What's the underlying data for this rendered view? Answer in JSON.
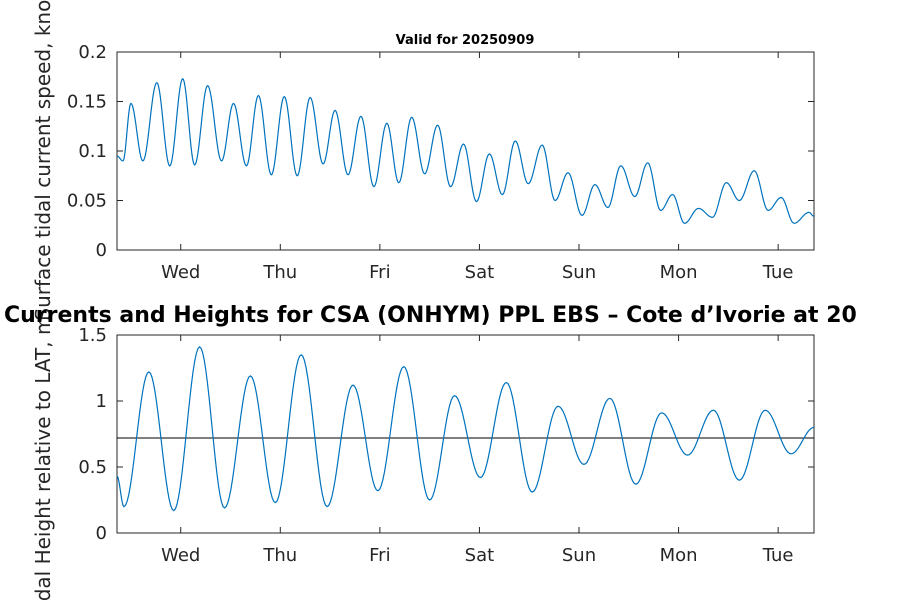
{
  "chart_data": [
    {
      "type": "line",
      "title": "Valid for 20250909",
      "ylabel": "Surface tidal current speed, knots",
      "xlabel": "",
      "ylim": [
        0,
        0.2
      ],
      "xlim": [
        0,
        7
      ],
      "yticks": [
        "0",
        "0.05",
        "0.1",
        "0.15",
        "0.2"
      ],
      "xticks": [
        "Wed",
        "Thu",
        "Fri",
        "Sat",
        "Sun",
        "Mon",
        "Tue"
      ],
      "xtick_positions_days": [
        0.64,
        1.64,
        2.64,
        3.64,
        4.64,
        5.64,
        6.64
      ],
      "grid": false,
      "line_color": "#0072BD",
      "series": [
        {
          "x": [
            0.0,
            0.06,
            0.14,
            0.26,
            0.4,
            0.53,
            0.66,
            0.78,
            0.91,
            1.05,
            1.17,
            1.3,
            1.42,
            1.55,
            1.68,
            1.81,
            1.94,
            2.07,
            2.19,
            2.32,
            2.45,
            2.58,
            2.71,
            2.83,
            2.96,
            3.09,
            3.22,
            3.35,
            3.48,
            3.61,
            3.74,
            3.87,
            4.0,
            4.13,
            4.27,
            4.4,
            4.53,
            4.67,
            4.8,
            4.93,
            5.06,
            5.2,
            5.33,
            5.46,
            5.58,
            5.7,
            5.84,
            5.98,
            6.12,
            6.25,
            6.4,
            6.54,
            6.67,
            6.8,
            6.95,
            7.0
          ],
          "y": [
            0.095,
            0.09,
            0.148,
            0.09,
            0.169,
            0.085,
            0.173,
            0.086,
            0.166,
            0.09,
            0.148,
            0.085,
            0.156,
            0.076,
            0.155,
            0.075,
            0.154,
            0.087,
            0.141,
            0.076,
            0.135,
            0.064,
            0.128,
            0.068,
            0.134,
            0.077,
            0.126,
            0.064,
            0.107,
            0.049,
            0.097,
            0.056,
            0.11,
            0.067,
            0.106,
            0.05,
            0.078,
            0.035,
            0.066,
            0.043,
            0.085,
            0.054,
            0.088,
            0.04,
            0.056,
            0.027,
            0.042,
            0.033,
            0.068,
            0.05,
            0.08,
            0.04,
            0.053,
            0.027,
            0.038,
            0.034
          ]
        }
      ]
    },
    {
      "type": "line",
      "title": "Currents and Heights for CSA (ONHYM) PPL EBS  – Cote d’Ivorie at 20",
      "ylabel": "Tidal Height relative to LAT, m",
      "xlabel": "",
      "ylim": [
        0,
        1.5
      ],
      "xlim": [
        0,
        7
      ],
      "yticks": [
        "0",
        "0.5",
        "1",
        "1.5"
      ],
      "xticks": [
        "Wed",
        "Thu",
        "Fri",
        "Sat",
        "Sun",
        "Mon",
        "Tue"
      ],
      "xtick_positions_days": [
        0.64,
        1.64,
        2.64,
        3.64,
        4.64,
        5.64,
        6.64
      ],
      "grid": false,
      "line_color": "#0072BD",
      "reference_line": 0.72,
      "series": [
        {
          "x": [
            0.0,
            0.07,
            0.32,
            0.57,
            0.83,
            1.08,
            1.34,
            1.59,
            1.85,
            2.11,
            2.37,
            2.62,
            2.88,
            3.14,
            3.39,
            3.65,
            3.91,
            4.17,
            4.43,
            4.69,
            4.95,
            5.21,
            5.47,
            5.73,
            5.99,
            6.25,
            6.51,
            6.77,
            7.0
          ],
          "y": [
            0.43,
            0.2,
            1.22,
            0.17,
            1.41,
            0.19,
            1.19,
            0.23,
            1.35,
            0.2,
            1.12,
            0.32,
            1.26,
            0.25,
            1.04,
            0.42,
            1.14,
            0.31,
            0.96,
            0.52,
            1.02,
            0.37,
            0.91,
            0.59,
            0.93,
            0.4,
            0.93,
            0.6,
            0.8
          ]
        }
      ]
    }
  ]
}
